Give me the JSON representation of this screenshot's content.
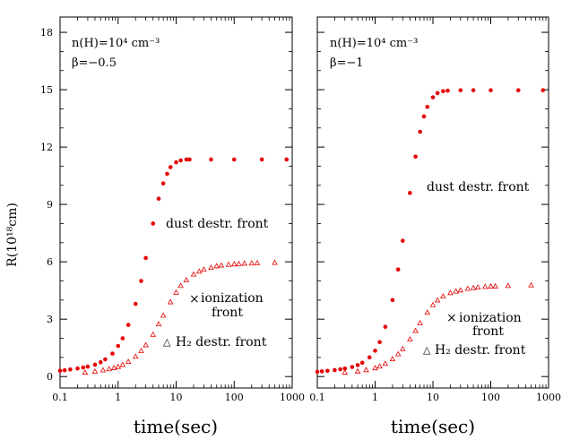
{
  "figure": {
    "ylabel": "R(10¹⁸cm)",
    "xlabel": "time(sec)",
    "colors": {
      "data": "#e60000",
      "axes": "#000000",
      "background": "#ffffff"
    }
  },
  "chart_data": [
    {
      "type": "scatter",
      "xscale": "log",
      "xlim": [
        0.1,
        1000
      ],
      "ylim": [
        -0.6,
        18.8
      ],
      "xticks": [
        0.1,
        1,
        10,
        100,
        1000
      ],
      "xtick_labels": [
        "0.1",
        "1",
        "10",
        "100",
        "1000"
      ],
      "yticks": [
        0,
        3,
        6,
        9,
        12,
        15,
        18
      ],
      "ytick_labels": [
        "0",
        "3",
        "6",
        "9",
        "12",
        "15",
        "18"
      ],
      "params": {
        "density": "n(H)=10⁴ cm⁻³",
        "beta": "β=−0.5"
      },
      "series": [
        {
          "name": "dust destr. front",
          "marker": "dot",
          "color": "#e60000",
          "x": [
            0.1,
            0.12,
            0.15,
            0.2,
            0.25,
            0.3,
            0.4,
            0.5,
            0.6,
            0.8,
            1,
            1.2,
            1.5,
            2,
            2.5,
            3,
            4,
            5,
            6,
            7,
            8,
            10,
            12,
            15,
            17,
            40,
            100,
            300,
            800
          ],
          "y": [
            0.3,
            0.33,
            0.37,
            0.42,
            0.47,
            0.52,
            0.62,
            0.75,
            0.9,
            1.2,
            1.6,
            2.0,
            2.7,
            3.8,
            5.0,
            6.2,
            8.0,
            9.3,
            10.1,
            10.6,
            10.95,
            11.2,
            11.3,
            11.35,
            11.35,
            11.35,
            11.35,
            11.35,
            11.35
          ]
        },
        {
          "name": "H₂ destr. front",
          "marker": "triangle",
          "color": "#e60000",
          "x": [
            0.27,
            0.4,
            0.55,
            0.7,
            0.85,
            1,
            1.2,
            1.5,
            2,
            2.5,
            3,
            4,
            5,
            6,
            8,
            10,
            12,
            15,
            20,
            25,
            30,
            40,
            50,
            60,
            80,
            100,
            120,
            150,
            200,
            250,
            500
          ],
          "y": [
            0.22,
            0.27,
            0.34,
            0.4,
            0.46,
            0.52,
            0.62,
            0.78,
            1.05,
            1.35,
            1.65,
            2.2,
            2.75,
            3.2,
            3.9,
            4.4,
            4.75,
            5.05,
            5.35,
            5.5,
            5.6,
            5.7,
            5.78,
            5.82,
            5.86,
            5.88,
            5.9,
            5.92,
            5.93,
            5.94,
            5.96
          ]
        }
      ],
      "annotations": [
        {
          "text": "dust destr. front"
        },
        {
          "text": "ionization"
        },
        {
          "text": "front"
        },
        {
          "text": "H₂ destr. front"
        }
      ]
    },
    {
      "type": "scatter",
      "xscale": "log",
      "xlim": [
        0.1,
        1000
      ],
      "ylim": [
        -0.6,
        18.8
      ],
      "xticks": [
        0.1,
        1,
        10,
        100,
        1000
      ],
      "xtick_labels": [
        "0.1",
        "1",
        "10",
        "100",
        "1000"
      ],
      "yticks": [
        0,
        3,
        6,
        9,
        12,
        15,
        18
      ],
      "ytick_labels": [
        "",
        "",
        "",
        "",
        "",
        "",
        ""
      ],
      "params": {
        "density": "n(H)=10⁴ cm⁻³",
        "beta": "β=−1"
      },
      "series": [
        {
          "name": "dust destr. front",
          "marker": "dot",
          "color": "#e60000",
          "x": [
            0.1,
            0.12,
            0.15,
            0.2,
            0.25,
            0.3,
            0.4,
            0.5,
            0.6,
            0.8,
            1,
            1.2,
            1.5,
            2,
            2.5,
            3,
            4,
            5,
            6,
            7,
            8,
            10,
            12,
            15,
            18,
            30,
            50,
            100,
            300,
            800
          ],
          "y": [
            0.25,
            0.27,
            0.3,
            0.34,
            0.38,
            0.42,
            0.5,
            0.6,
            0.72,
            1.0,
            1.35,
            1.8,
            2.6,
            4.0,
            5.6,
            7.1,
            9.6,
            11.5,
            12.8,
            13.6,
            14.1,
            14.6,
            14.82,
            14.92,
            14.95,
            14.97,
            14.97,
            14.97,
            14.97,
            14.97
          ]
        },
        {
          "name": "H₂ destr. front",
          "marker": "triangle",
          "color": "#e60000",
          "x": [
            0.3,
            0.5,
            0.7,
            1,
            1.2,
            1.5,
            2,
            2.5,
            3,
            4,
            5,
            6,
            8,
            10,
            12,
            15,
            20,
            25,
            30,
            40,
            50,
            60,
            80,
            100,
            120,
            200,
            500
          ],
          "y": [
            0.22,
            0.28,
            0.35,
            0.45,
            0.54,
            0.68,
            0.92,
            1.18,
            1.45,
            1.95,
            2.4,
            2.8,
            3.35,
            3.75,
            4.0,
            4.2,
            4.38,
            4.46,
            4.52,
            4.6,
            4.64,
            4.67,
            4.7,
            4.72,
            4.73,
            4.75,
            4.78
          ]
        }
      ],
      "annotations": [
        {
          "text": "dust destr. front"
        },
        {
          "text": "ionization"
        },
        {
          "text": "front"
        },
        {
          "text": "H₂ destr. front"
        }
      ]
    }
  ]
}
